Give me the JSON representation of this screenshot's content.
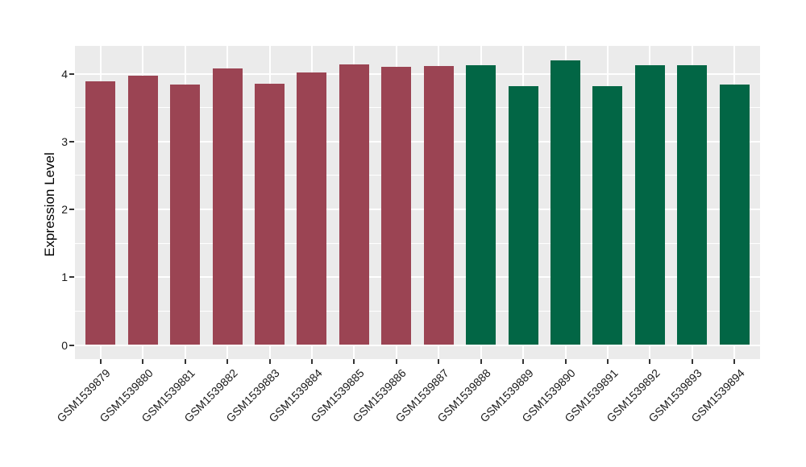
{
  "chart_data": {
    "type": "bar",
    "title": "",
    "xlabel": "",
    "ylabel": "Expression Level",
    "categories": [
      "GSM1539879",
      "GSM1539880",
      "GSM1539881",
      "GSM1539882",
      "GSM1539883",
      "GSM1539884",
      "GSM1539885",
      "GSM1539886",
      "GSM1539887",
      "GSM1539888",
      "GSM1539889",
      "GSM1539890",
      "GSM1539891",
      "GSM1539892",
      "GSM1539893",
      "GSM1539894"
    ],
    "values": [
      3.89,
      3.97,
      3.84,
      4.08,
      3.85,
      4.02,
      4.14,
      4.1,
      4.11,
      4.12,
      3.82,
      4.2,
      3.82,
      4.13,
      4.13,
      3.84
    ],
    "bar_colors": [
      "#9B4453",
      "#9B4453",
      "#9B4453",
      "#9B4453",
      "#9B4453",
      "#9B4453",
      "#9B4453",
      "#9B4453",
      "#9B4453",
      "#026645",
      "#026645",
      "#026645",
      "#026645",
      "#026645",
      "#026645",
      "#026645"
    ],
    "group_colors": {
      "left_group": "#9B4453",
      "right_group": "#026645"
    },
    "yticks": [
      0,
      1,
      2,
      3,
      4
    ],
    "yminor": [
      0.5,
      1.5,
      2.5,
      3.5
    ],
    "ylim": [
      -0.21,
      4.41
    ],
    "grid": true,
    "legend": "none",
    "panel_bg": "#EBEBEB",
    "grid_color": "#FFFFFF",
    "tick_color": "#333333",
    "text_color": "#1a1a1a"
  }
}
